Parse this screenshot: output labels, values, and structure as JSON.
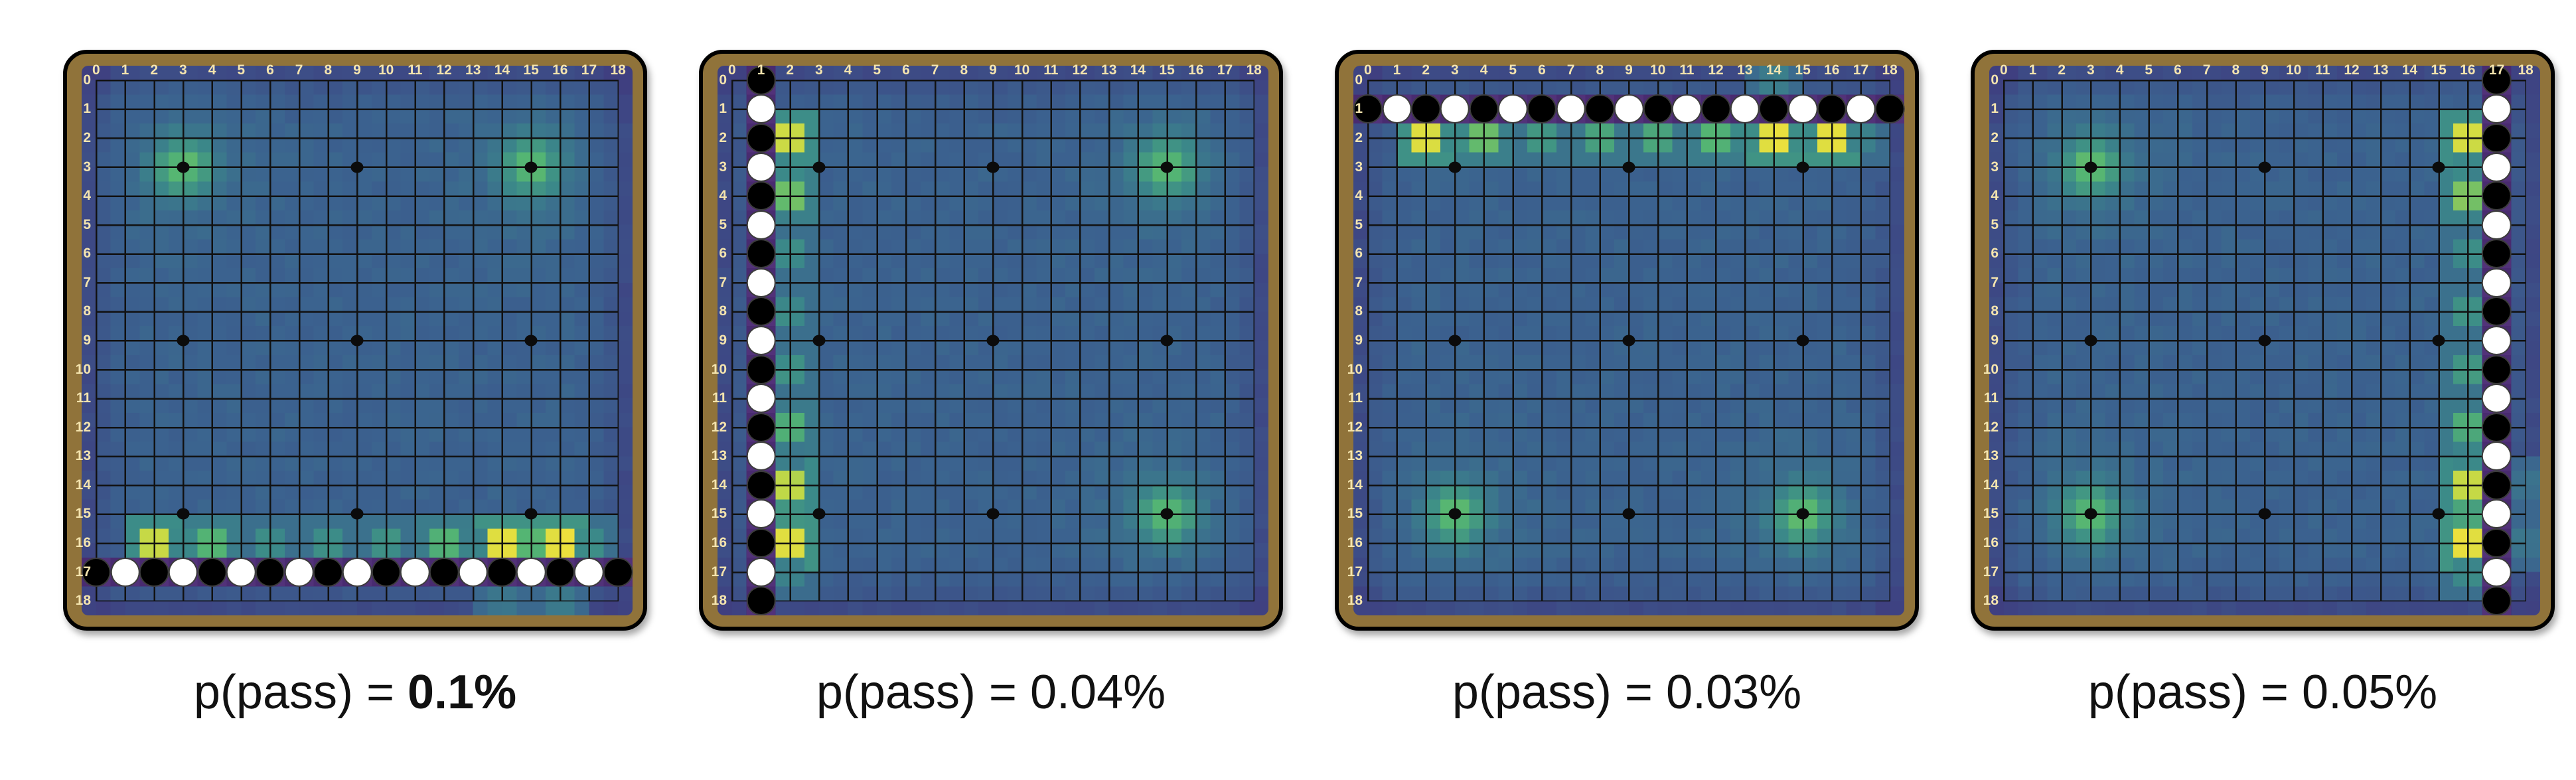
{
  "page": {
    "background": "#ffffff"
  },
  "colors": {
    "board_wood": "#90733a",
    "board_outline": "#000000",
    "coord_label": "#f4e4ae",
    "caption_text": "#111111",
    "grid_line": "#111111",
    "star_point": "#0b0b0b",
    "stone_black": "#000000",
    "stone_white": "#ffffff",
    "stone_rim": "#3c3c3c",
    "wall_strip": "#492b70",
    "wall_strip_alt": "#523279",
    "heat_edge": "#3e4282",
    "heat_base": "#3b628f",
    "heat_teal": "#3b8a89",
    "heat_green": "#54b573",
    "heat_yellow_green": "#bcd748",
    "heat_yellow": "#f1e13c"
  },
  "chart_data": {
    "type": "heatmap",
    "description": "Four 19x19 Go board policy heatmaps; each board has a wall of alternating black and white stones along one edge, bright policy hotspots on the adjacent line, soft green blobs at the far-side star points, and a pass-probability caption below.",
    "colormap": "viridis-like",
    "grid": {
      "size": 19,
      "coordinates": [
        "0",
        "1",
        "2",
        "3",
        "4",
        "5",
        "6",
        "7",
        "8",
        "9",
        "10",
        "11",
        "12",
        "13",
        "14",
        "15",
        "16",
        "17",
        "18"
      ],
      "star_points": [
        [
          3,
          3
        ],
        [
          9,
          3
        ],
        [
          15,
          3
        ],
        [
          3,
          9
        ],
        [
          9,
          9
        ],
        [
          15,
          9
        ],
        [
          3,
          15
        ],
        [
          9,
          15
        ],
        [
          15,
          15
        ]
      ]
    },
    "panels": [
      {
        "caption": {
          "prefix": "p(pass) = ",
          "value": "0.1%",
          "bold": true
        },
        "stones": {
          "axis": "row",
          "line": 17,
          "colors": [
            "black",
            "white",
            "black",
            "white",
            "black",
            "white",
            "black",
            "white",
            "black",
            "white",
            "black",
            "white",
            "black",
            "white",
            "black",
            "white",
            "black",
            "white",
            "black"
          ]
        },
        "hotspots": [
          {
            "x": 2,
            "y": 16,
            "v": 0.87
          },
          {
            "x": 3,
            "y": 16,
            "v": 0.48
          },
          {
            "x": 4,
            "y": 16,
            "v": 0.68
          },
          {
            "x": 6,
            "y": 16,
            "v": 0.5
          },
          {
            "x": 8,
            "y": 16,
            "v": 0.52
          },
          {
            "x": 10,
            "y": 16,
            "v": 0.52
          },
          {
            "x": 12,
            "y": 16,
            "v": 0.66
          },
          {
            "x": 13,
            "y": 16,
            "v": 0.46
          },
          {
            "x": 14,
            "y": 16,
            "v": 0.95
          },
          {
            "x": 15,
            "y": 16,
            "v": 0.68
          },
          {
            "x": 16,
            "y": 16,
            "v": 0.97
          },
          {
            "x": 17,
            "y": 16,
            "v": 0.5
          },
          {
            "x": 14,
            "y": 18,
            "v": 0.42
          },
          {
            "x": 16,
            "y": 18,
            "v": 0.42
          }
        ],
        "corner_blobs": [
          {
            "x": 3,
            "y": 3
          },
          {
            "x": 15,
            "y": 3
          }
        ]
      },
      {
        "caption": {
          "prefix": "p(pass) = ",
          "value": "0.04%",
          "bold": false
        },
        "stones": {
          "axis": "col",
          "line": 1,
          "colors": [
            "black",
            "white",
            "black",
            "white",
            "black",
            "white",
            "black",
            "white",
            "black",
            "white",
            "black",
            "white",
            "black",
            "white",
            "black",
            "white",
            "black",
            "white",
            "black"
          ]
        },
        "hotspots": [
          {
            "x": 2,
            "y": 2,
            "v": 0.88
          },
          {
            "x": 2,
            "y": 3,
            "v": 0.5
          },
          {
            "x": 2,
            "y": 4,
            "v": 0.72
          },
          {
            "x": 2,
            "y": 6,
            "v": 0.5
          },
          {
            "x": 2,
            "y": 8,
            "v": 0.5
          },
          {
            "x": 2,
            "y": 10,
            "v": 0.52
          },
          {
            "x": 2,
            "y": 12,
            "v": 0.64
          },
          {
            "x": 2,
            "y": 13,
            "v": 0.44
          },
          {
            "x": 2,
            "y": 14,
            "v": 0.84
          },
          {
            "x": 2,
            "y": 15,
            "v": 0.55
          },
          {
            "x": 2,
            "y": 16,
            "v": 0.95
          },
          {
            "x": 2,
            "y": 17,
            "v": 0.46
          }
        ],
        "corner_blobs": [
          {
            "x": 15,
            "y": 3
          },
          {
            "x": 15,
            "y": 15
          }
        ]
      },
      {
        "caption": {
          "prefix": "p(pass) = ",
          "value": "0.03%",
          "bold": false
        },
        "stones": {
          "axis": "row",
          "line": 1,
          "colors": [
            "black",
            "white",
            "black",
            "white",
            "black",
            "white",
            "black",
            "white",
            "black",
            "white",
            "black",
            "white",
            "black",
            "white",
            "black",
            "white",
            "black",
            "white",
            "black"
          ]
        },
        "hotspots": [
          {
            "x": 2,
            "y": 2,
            "v": 0.93
          },
          {
            "x": 3,
            "y": 2,
            "v": 0.5
          },
          {
            "x": 4,
            "y": 2,
            "v": 0.7
          },
          {
            "x": 6,
            "y": 2,
            "v": 0.55
          },
          {
            "x": 8,
            "y": 2,
            "v": 0.6
          },
          {
            "x": 10,
            "y": 2,
            "v": 0.6
          },
          {
            "x": 12,
            "y": 2,
            "v": 0.66
          },
          {
            "x": 13,
            "y": 2,
            "v": 0.5
          },
          {
            "x": 14,
            "y": 2,
            "v": 0.96
          },
          {
            "x": 15,
            "y": 2,
            "v": 0.52
          },
          {
            "x": 16,
            "y": 2,
            "v": 0.96
          },
          {
            "x": 17,
            "y": 2,
            "v": 0.46
          },
          {
            "x": 14,
            "y": 0,
            "v": 0.44
          }
        ],
        "corner_blobs": [
          {
            "x": 3,
            "y": 15
          },
          {
            "x": 15,
            "y": 15
          }
        ]
      },
      {
        "caption": {
          "prefix": "p(pass) = ",
          "value": "0.05%",
          "bold": false
        },
        "stones": {
          "axis": "col",
          "line": 17,
          "colors": [
            "black",
            "white",
            "black",
            "white",
            "black",
            "white",
            "black",
            "white",
            "black",
            "white",
            "black",
            "white",
            "black",
            "white",
            "black",
            "white",
            "black",
            "white",
            "black"
          ]
        },
        "hotspots": [
          {
            "x": 16,
            "y": 2,
            "v": 0.9
          },
          {
            "x": 16,
            "y": 3,
            "v": 0.48
          },
          {
            "x": 16,
            "y": 4,
            "v": 0.74
          },
          {
            "x": 16,
            "y": 6,
            "v": 0.5
          },
          {
            "x": 16,
            "y": 8,
            "v": 0.52
          },
          {
            "x": 16,
            "y": 10,
            "v": 0.56
          },
          {
            "x": 16,
            "y": 12,
            "v": 0.64
          },
          {
            "x": 16,
            "y": 13,
            "v": 0.48
          },
          {
            "x": 16,
            "y": 14,
            "v": 0.86
          },
          {
            "x": 16,
            "y": 15,
            "v": 0.6
          },
          {
            "x": 16,
            "y": 16,
            "v": 0.97
          },
          {
            "x": 16,
            "y": 17,
            "v": 0.5
          },
          {
            "x": 18,
            "y": 14,
            "v": 0.4
          },
          {
            "x": 18,
            "y": 16,
            "v": 0.4
          }
        ],
        "corner_blobs": [
          {
            "x": 3,
            "y": 3
          },
          {
            "x": 3,
            "y": 15
          }
        ]
      }
    ]
  }
}
